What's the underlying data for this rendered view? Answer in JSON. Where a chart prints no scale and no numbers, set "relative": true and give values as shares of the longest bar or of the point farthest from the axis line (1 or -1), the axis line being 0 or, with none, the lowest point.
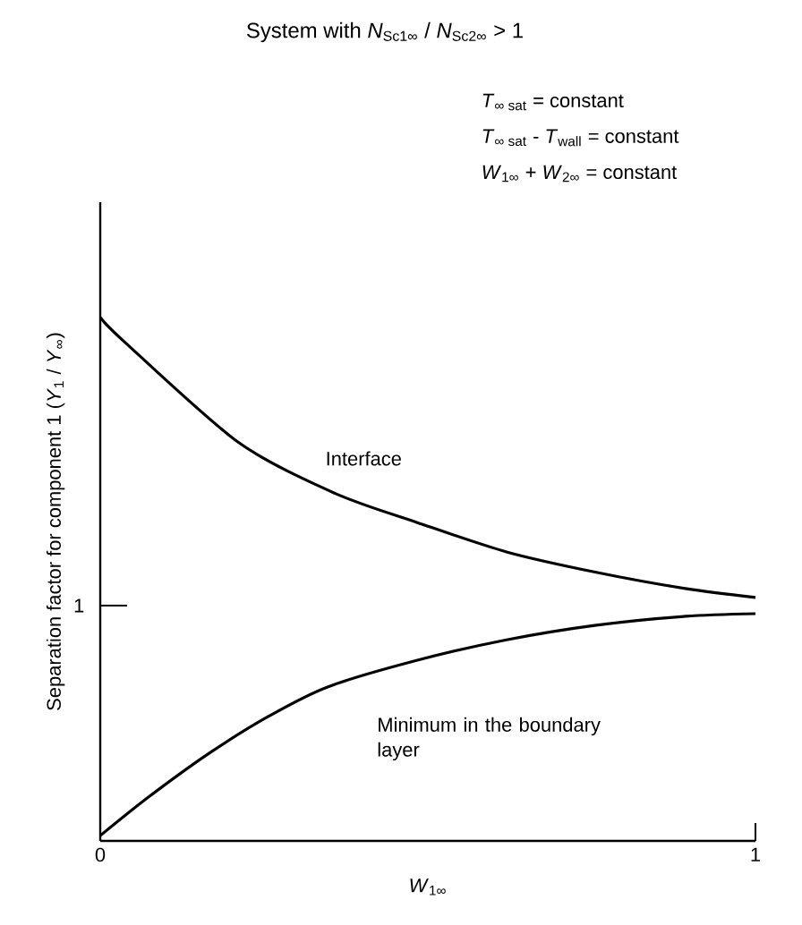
{
  "chart_data": {
    "type": "line",
    "relative": true,
    "title": "System with *N*$_{Sc1∞}$ / *N*$_{Sc2∞}$ > 1",
    "xlabel": "*W*$_{1∞}$",
    "ylabel": "Separation factor for component 1 (*Y*$_{1}$ / *Y*$_{∞}$)",
    "annotations": [
      "*T*$_{∞ sat}$ = constant",
      "*T*$_{∞ sat}$ - *T*$_{wall}$ = constant",
      "*W*$_{1∞}$ + *W*$_{2∞}$ = constant",
      "1"
    ],
    "xlim": [
      0,
      1
    ],
    "xticks": [
      0,
      1
    ],
    "grid": false,
    "legend": false,
    "marker": "none",
    "line_style": "solid",
    "series": [
      {
        "name": "Interface",
        "color": "#000000",
        "x": [
          0,
          0.038,
          0.21,
          0.358,
          0.484,
          0.62,
          0.757,
          0.893,
          1.0
        ],
        "values": [
          1.0,
          0.952,
          0.762,
          0.664,
          0.608,
          0.552,
          0.513,
          0.482,
          0.465
        ]
      },
      {
        "name": "Minimum in the boundary layer",
        "color": "#000000",
        "x": [
          0,
          0.074,
          0.167,
          0.257,
          0.347,
          0.484,
          0.62,
          0.757,
          0.893,
          1.0
        ],
        "values": [
          0.01,
          0.084,
          0.168,
          0.238,
          0.294,
          0.345,
          0.384,
          0.412,
          0.429,
          0.434
        ]
      }
    ]
  }
}
